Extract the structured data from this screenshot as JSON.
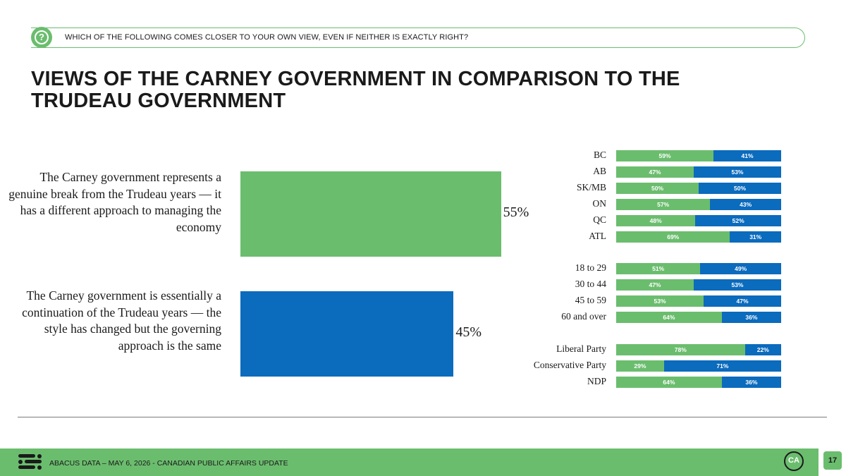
{
  "header": {
    "question": "WHICH OF THE FOLLOWING COMES CLOSER TO YOUR OWN VIEW, EVEN IF NEITHER IS EXACTLY RIGHT?",
    "question_icon": "?",
    "title": "VIEWS OF THE CARNEY GOVERNMENT IN COMPARISON TO THE TRUDEAU GOVERNMENT"
  },
  "colors": {
    "green": "#6bbd6e",
    "blue": "#0b6bbd"
  },
  "chart_data": [
    {
      "type": "bar",
      "orientation": "horizontal",
      "categories": [
        "The Carney government represents a genuine break from the Trudeau years — it has a different approach to managing the economy",
        "The Carney government is essentially a continuation of the Trudeau years — the style has changed but the governing approach is the same"
      ],
      "values": [
        55,
        45
      ],
      "value_labels": [
        "55%",
        "45%"
      ],
      "colors": [
        "#6bbd6e",
        "#0b6bbd"
      ],
      "xlim": [
        0,
        100
      ],
      "grid": false
    },
    {
      "type": "bar",
      "orientation": "horizontal",
      "stacked": true,
      "groups": [
        [
          "BC",
          "AB",
          "SK/MB",
          "ON",
          "QC",
          "ATL"
        ],
        [
          "18 to 29",
          "30 to 44",
          "45 to 59",
          "60 and over"
        ],
        [
          "Liberal Party",
          "Conservative Party",
          "NDP"
        ]
      ],
      "categories": [
        "BC",
        "AB",
        "SK/MB",
        "ON",
        "QC",
        "ATL",
        "18 to 29",
        "30 to 44",
        "45 to 59",
        "60 and over",
        "Liberal Party",
        "Conservative Party",
        "NDP"
      ],
      "series": [
        {
          "color": "#6bbd6e",
          "values": [
            59,
            47,
            50,
            57,
            48,
            69,
            51,
            47,
            53,
            64,
            78,
            29,
            64
          ],
          "labels": [
            "59%",
            "47%",
            "50%",
            "57%",
            "48%",
            "69%",
            "51%",
            "47%",
            "53%",
            "64%",
            "78%",
            "29%",
            "64%"
          ]
        },
        {
          "color": "#0b6bbd",
          "values": [
            41,
            53,
            50,
            43,
            52,
            31,
            49,
            53,
            47,
            36,
            22,
            71,
            36
          ],
          "labels": [
            "41%",
            "53%",
            "50%",
            "43%",
            "52%",
            "31%",
            "49%",
            "53%",
            "47%",
            "36%",
            "22%",
            "71%",
            "36%"
          ]
        }
      ],
      "xlim": [
        0,
        100
      ],
      "grid": false
    }
  ],
  "footer": {
    "text": "ABACUS DATA – MAY 6, 2026 - CANADIAN PUBLIC AFFAIRS UPDATE",
    "logo_text": "CA",
    "page_number": "17"
  }
}
